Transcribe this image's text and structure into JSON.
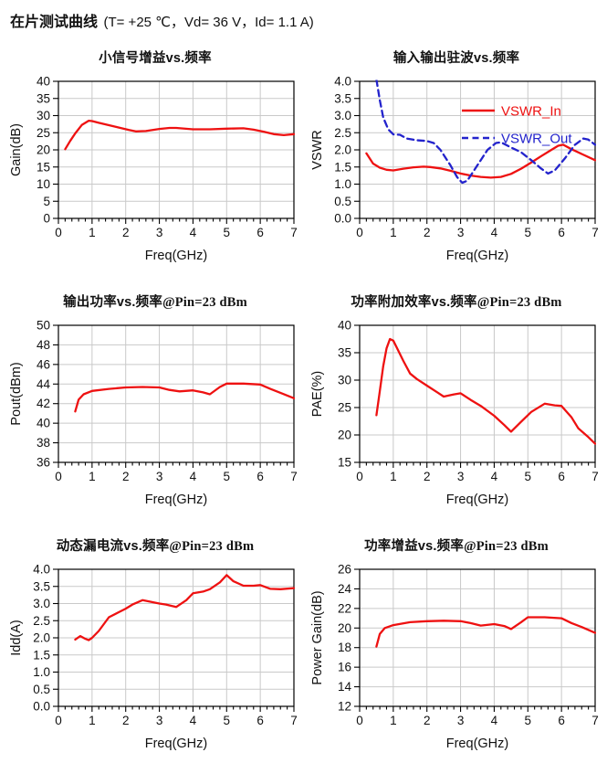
{
  "header": {
    "title": "在片测试曲线",
    "conditions": "(T= +25 ℃，Vd= 36 V，Id= 1.1 A)"
  },
  "colors": {
    "red": "#ee1111",
    "blue": "#2323cc",
    "grid": "#c9c9c9",
    "axis": "#000000",
    "text": "#111111"
  },
  "chart_data": [
    {
      "type": "line",
      "title": "小信号增益vs.频率",
      "title_suffix": "",
      "xlabel": "Freq(GHz)",
      "ylabel": "Gain(dB)",
      "xaxis": {
        "min": 0,
        "max": 7,
        "major": 1,
        "minor": 0.2
      },
      "yaxis": {
        "min": 0,
        "max": 40,
        "step": 5,
        "decimals": 0
      },
      "grid": true,
      "series": [
        {
          "name": "Gain",
          "color": "#ee1111",
          "dash": "",
          "points": [
            [
              0.2,
              20.2
            ],
            [
              0.35,
              22.6
            ],
            [
              0.5,
              24.8
            ],
            [
              0.7,
              27.3
            ],
            [
              0.9,
              28.5
            ],
            [
              1.0,
              28.4
            ],
            [
              1.2,
              27.9
            ],
            [
              1.5,
              27.2
            ],
            [
              1.8,
              26.5
            ],
            [
              2.1,
              25.8
            ],
            [
              2.3,
              25.4
            ],
            [
              2.6,
              25.5
            ],
            [
              3.0,
              26.1
            ],
            [
              3.3,
              26.4
            ],
            [
              3.5,
              26.4
            ],
            [
              4.0,
              26.0
            ],
            [
              4.5,
              26.0
            ],
            [
              5.0,
              26.2
            ],
            [
              5.5,
              26.3
            ],
            [
              5.8,
              25.9
            ],
            [
              6.1,
              25.3
            ],
            [
              6.4,
              24.6
            ],
            [
              6.7,
              24.3
            ],
            [
              7.0,
              24.6
            ]
          ]
        }
      ]
    },
    {
      "type": "line",
      "title": "输入输出驻波vs.频率",
      "title_suffix": "",
      "xlabel": "Freq(GHz)",
      "ylabel": "VSWR",
      "xaxis": {
        "min": 0,
        "max": 7,
        "major": 1,
        "minor": 0.2
      },
      "yaxis": {
        "min": 0,
        "max": 4,
        "step": 0.5,
        "decimals": 1
      },
      "grid": true,
      "legend": [
        {
          "label": "VSWR_In",
          "color": "#ee1111",
          "dash": ""
        },
        {
          "label": "VSWR_Out",
          "color": "#2323cc",
          "dash": "7 4.5"
        }
      ],
      "series": [
        {
          "name": "VSWR_In",
          "color": "#ee1111",
          "dash": "",
          "points": [
            [
              0.2,
              1.9
            ],
            [
              0.4,
              1.6
            ],
            [
              0.6,
              1.48
            ],
            [
              0.8,
              1.42
            ],
            [
              1.0,
              1.4
            ],
            [
              1.3,
              1.45
            ],
            [
              1.6,
              1.49
            ],
            [
              1.9,
              1.51
            ],
            [
              2.1,
              1.5
            ],
            [
              2.4,
              1.46
            ],
            [
              2.7,
              1.39
            ],
            [
              3.0,
              1.31
            ],
            [
              3.3,
              1.25
            ],
            [
              3.6,
              1.21
            ],
            [
              3.9,
              1.19
            ],
            [
              4.2,
              1.21
            ],
            [
              4.5,
              1.3
            ],
            [
              4.8,
              1.45
            ],
            [
              5.1,
              1.63
            ],
            [
              5.4,
              1.82
            ],
            [
              5.7,
              2.0
            ],
            [
              5.9,
              2.12
            ],
            [
              6.05,
              2.15
            ],
            [
              6.3,
              2.02
            ],
            [
              6.6,
              1.88
            ],
            [
              7.0,
              1.7
            ]
          ]
        },
        {
          "name": "VSWR_Out",
          "color": "#2323cc",
          "dash": "7 4.5",
          "points": [
            [
              0.5,
              4.05
            ],
            [
              0.6,
              3.45
            ],
            [
              0.7,
              2.95
            ],
            [
              0.85,
              2.6
            ],
            [
              1.0,
              2.45
            ],
            [
              1.2,
              2.44
            ],
            [
              1.4,
              2.33
            ],
            [
              1.7,
              2.28
            ],
            [
              2.0,
              2.26
            ],
            [
              2.2,
              2.2
            ],
            [
              2.4,
              2.0
            ],
            [
              2.7,
              1.55
            ],
            [
              2.9,
              1.2
            ],
            [
              3.05,
              1.04
            ],
            [
              3.2,
              1.1
            ],
            [
              3.5,
              1.55
            ],
            [
              3.8,
              2.0
            ],
            [
              4.05,
              2.2
            ],
            [
              4.2,
              2.22
            ],
            [
              4.5,
              2.07
            ],
            [
              4.8,
              1.93
            ],
            [
              5.1,
              1.7
            ],
            [
              5.4,
              1.45
            ],
            [
              5.6,
              1.31
            ],
            [
              5.8,
              1.4
            ],
            [
              6.1,
              1.75
            ],
            [
              6.4,
              2.15
            ],
            [
              6.65,
              2.33
            ],
            [
              6.8,
              2.3
            ],
            [
              7.0,
              2.15
            ]
          ]
        }
      ]
    },
    {
      "type": "line",
      "title": "输出功率vs.频率",
      "title_suffix": "@Pin=23 dBm",
      "xlabel": "Freq(GHz)",
      "ylabel": "Pout(dBm)",
      "xaxis": {
        "min": 0,
        "max": 7,
        "major": 1,
        "minor": 0.2
      },
      "yaxis": {
        "min": 36,
        "max": 50,
        "step": 2,
        "decimals": 0
      },
      "grid": true,
      "series": [
        {
          "name": "Pout",
          "color": "#ee1111",
          "dash": "",
          "points": [
            [
              0.5,
              41.2
            ],
            [
              0.6,
              42.4
            ],
            [
              0.75,
              42.95
            ],
            [
              1.0,
              43.3
            ],
            [
              1.5,
              43.5
            ],
            [
              2.0,
              43.65
            ],
            [
              2.5,
              43.7
            ],
            [
              3.0,
              43.65
            ],
            [
              3.3,
              43.4
            ],
            [
              3.6,
              43.25
            ],
            [
              4.0,
              43.35
            ],
            [
              4.3,
              43.15
            ],
            [
              4.5,
              42.95
            ],
            [
              4.8,
              43.7
            ],
            [
              5.0,
              44.05
            ],
            [
              5.5,
              44.05
            ],
            [
              6.0,
              43.95
            ],
            [
              6.3,
              43.5
            ],
            [
              6.6,
              43.1
            ],
            [
              7.0,
              42.55
            ]
          ]
        }
      ]
    },
    {
      "type": "line",
      "title": "功率附加效率vs.频率",
      "title_suffix": "@Pin=23 dBm",
      "xlabel": "Freq(GHz)",
      "ylabel": "PAE(%)",
      "xaxis": {
        "min": 0,
        "max": 7,
        "major": 1,
        "minor": 0.2
      },
      "yaxis": {
        "min": 15,
        "max": 40,
        "step": 5,
        "decimals": 0
      },
      "grid": true,
      "series": [
        {
          "name": "PAE",
          "color": "#ee1111",
          "dash": "",
          "points": [
            [
              0.5,
              23.6
            ],
            [
              0.6,
              28.0
            ],
            [
              0.7,
              32.5
            ],
            [
              0.8,
              35.8
            ],
            [
              0.9,
              37.5
            ],
            [
              1.0,
              37.2
            ],
            [
              1.1,
              36.0
            ],
            [
              1.3,
              33.5
            ],
            [
              1.5,
              31.2
            ],
            [
              1.7,
              30.2
            ],
            [
              2.0,
              29.0
            ],
            [
              2.3,
              27.8
            ],
            [
              2.5,
              27.0
            ],
            [
              2.8,
              27.4
            ],
            [
              3.0,
              27.6
            ],
            [
              3.3,
              26.4
            ],
            [
              3.6,
              25.3
            ],
            [
              4.0,
              23.5
            ],
            [
              4.3,
              21.8
            ],
            [
              4.5,
              20.6
            ],
            [
              4.8,
              22.4
            ],
            [
              5.1,
              24.2
            ],
            [
              5.5,
              25.7
            ],
            [
              5.8,
              25.4
            ],
            [
              6.0,
              25.3
            ],
            [
              6.3,
              23.2
            ],
            [
              6.5,
              21.2
            ],
            [
              6.8,
              19.6
            ],
            [
              7.0,
              18.4
            ]
          ]
        }
      ]
    },
    {
      "type": "line",
      "title": "动态漏电流vs.频率",
      "title_suffix": "@Pin=23 dBm",
      "xlabel": "Freq(GHz)",
      "ylabel": "Idd(A)",
      "xaxis": {
        "min": 0,
        "max": 7,
        "major": 1,
        "minor": 0.2
      },
      "yaxis": {
        "min": 0,
        "max": 4,
        "step": 0.5,
        "decimals": 1
      },
      "grid": true,
      "series": [
        {
          "name": "Idd",
          "color": "#ee1111",
          "dash": "",
          "points": [
            [
              0.5,
              1.95
            ],
            [
              0.65,
              2.05
            ],
            [
              0.8,
              1.97
            ],
            [
              0.9,
              1.93
            ],
            [
              1.0,
              2.0
            ],
            [
              1.2,
              2.2
            ],
            [
              1.5,
              2.6
            ],
            [
              1.8,
              2.75
            ],
            [
              2.0,
              2.85
            ],
            [
              2.2,
              2.97
            ],
            [
              2.5,
              3.1
            ],
            [
              2.8,
              3.04
            ],
            [
              3.0,
              3.0
            ],
            [
              3.2,
              2.97
            ],
            [
              3.5,
              2.9
            ],
            [
              3.8,
              3.1
            ],
            [
              4.0,
              3.3
            ],
            [
              4.3,
              3.35
            ],
            [
              4.5,
              3.42
            ],
            [
              4.8,
              3.62
            ],
            [
              5.0,
              3.83
            ],
            [
              5.2,
              3.65
            ],
            [
              5.5,
              3.52
            ],
            [
              5.8,
              3.52
            ],
            [
              6.0,
              3.54
            ],
            [
              6.3,
              3.43
            ],
            [
              6.6,
              3.42
            ],
            [
              7.0,
              3.45
            ]
          ]
        }
      ]
    },
    {
      "type": "line",
      "title": "功率增益vs.频率",
      "title_suffix": "@Pin=23 dBm",
      "xlabel": "Freq(GHz)",
      "ylabel": "Power Gain(dB)",
      "xaxis": {
        "min": 0,
        "max": 7,
        "major": 1,
        "minor": 0.2
      },
      "yaxis": {
        "min": 12,
        "max": 26,
        "step": 2,
        "decimals": 0
      },
      "grid": true,
      "series": [
        {
          "name": "Power Gain",
          "color": "#ee1111",
          "dash": "",
          "points": [
            [
              0.5,
              18.1
            ],
            [
              0.6,
              19.4
            ],
            [
              0.75,
              20.0
            ],
            [
              1.0,
              20.3
            ],
            [
              1.5,
              20.6
            ],
            [
              2.0,
              20.7
            ],
            [
              2.5,
              20.75
            ],
            [
              3.0,
              20.7
            ],
            [
              3.3,
              20.5
            ],
            [
              3.6,
              20.25
            ],
            [
              4.0,
              20.4
            ],
            [
              4.3,
              20.2
            ],
            [
              4.5,
              19.9
            ],
            [
              4.8,
              20.6
            ],
            [
              5.0,
              21.1
            ],
            [
              5.5,
              21.1
            ],
            [
              6.0,
              21.0
            ],
            [
              6.3,
              20.5
            ],
            [
              6.6,
              20.1
            ],
            [
              7.0,
              19.5
            ]
          ]
        }
      ]
    }
  ]
}
